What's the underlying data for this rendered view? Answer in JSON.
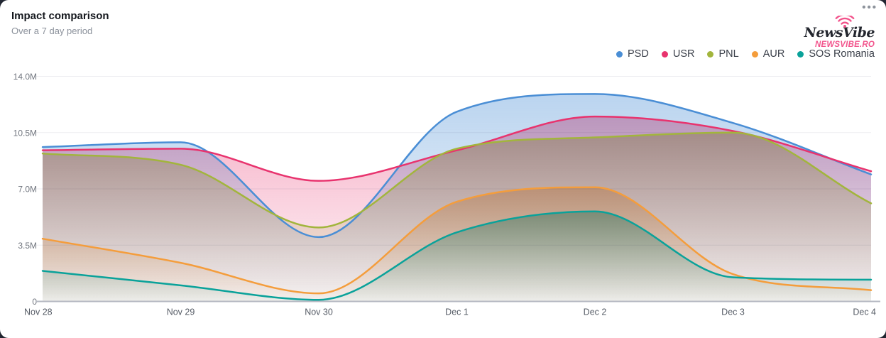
{
  "card": {
    "title": "Impact comparison",
    "subtitle": "Over a 7 day period",
    "menu_icon": "ellipsis-menu",
    "menu_glyph": "•••"
  },
  "logo": {
    "icon": "wifi-signal-icon",
    "name": "NewsVibe",
    "domain": "NEWSVIBE.RO",
    "accent_color": "#f2548c",
    "text_color": "#23262e"
  },
  "chart_data": {
    "type": "area",
    "title": "Impact comparison",
    "subtitle": "Over a 7 day period",
    "unit": "M",
    "ylim": [
      0,
      14
    ],
    "grid": true,
    "legend_position": "top-right",
    "x_labels": [
      "Nov 28",
      "Nov 29",
      "Nov 30",
      "Dec 1",
      "Dec 2",
      "Dec 3",
      "Dec 4"
    ],
    "y_ticks": [
      {
        "value": 0,
        "label": "0"
      },
      {
        "value": 3.5,
        "label": "3.5M"
      },
      {
        "value": 7,
        "label": "7.0M"
      },
      {
        "value": 10.5,
        "label": "10.5M"
      },
      {
        "value": 14,
        "label": "14.0M"
      }
    ],
    "series": [
      {
        "name": "PSD",
        "color": "#4a8ed5",
        "values": [
          9.6,
          9.9,
          4.0,
          11.8,
          12.9,
          11.1,
          7.9
        ]
      },
      {
        "name": "USR",
        "color": "#e8336e",
        "values": [
          9.4,
          9.5,
          7.5,
          9.4,
          11.5,
          10.6,
          8.1
        ]
      },
      {
        "name": "PNL",
        "color": "#a2b53c",
        "values": [
          9.2,
          8.5,
          4.6,
          9.5,
          10.2,
          10.5,
          6.1
        ]
      },
      {
        "name": "AUR",
        "color": "#f49d3c",
        "values": [
          3.9,
          2.4,
          0.5,
          6.2,
          7.1,
          1.7,
          0.7
        ]
      },
      {
        "name": "SOS Romania",
        "color": "#0aa29a",
        "values": [
          1.9,
          1.0,
          0.1,
          4.3,
          5.6,
          1.5,
          1.35
        ]
      }
    ]
  }
}
